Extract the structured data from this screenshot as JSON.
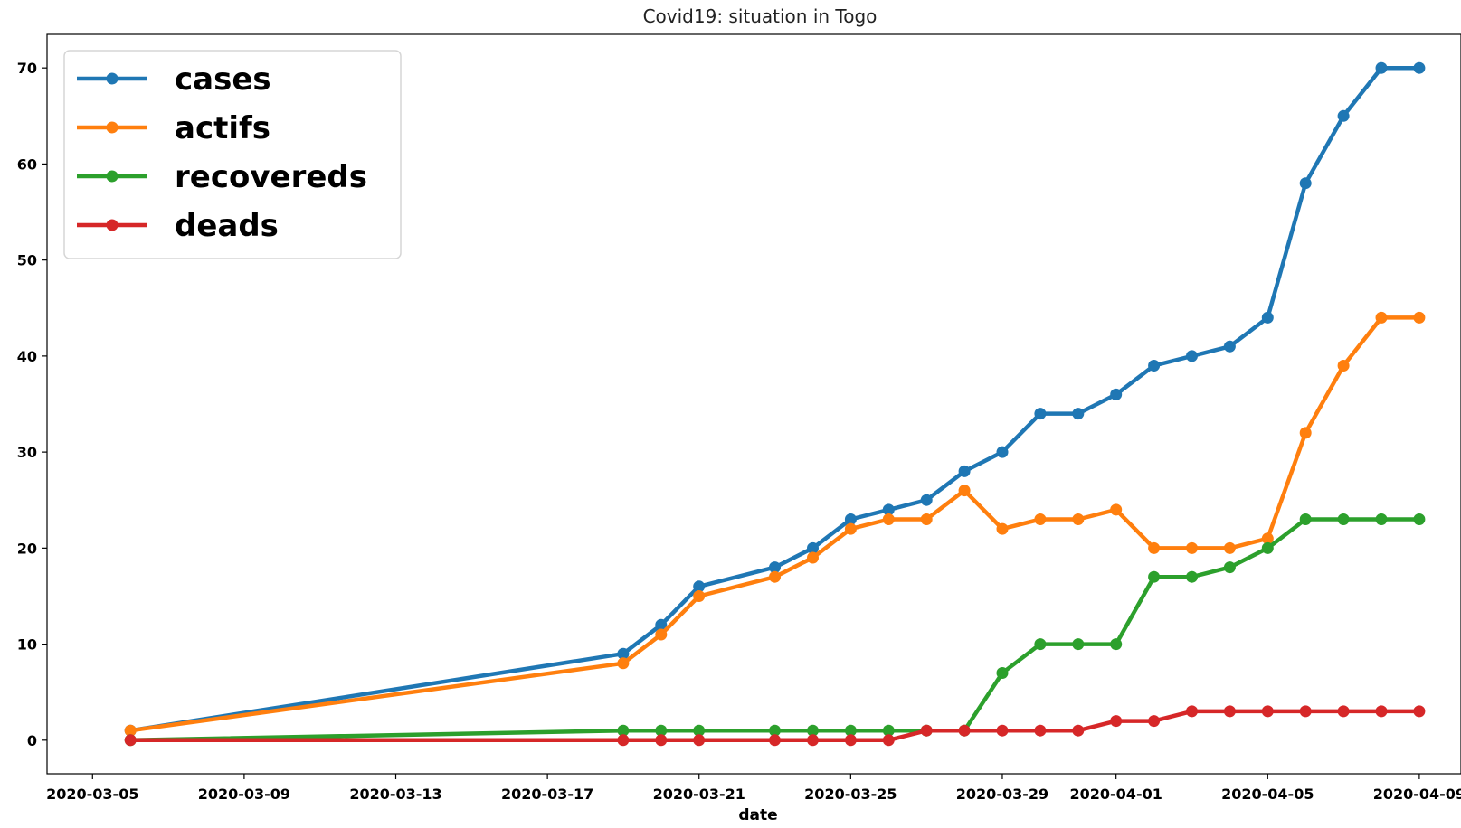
{
  "chart_data": {
    "type": "line",
    "title": "Covid19: situation in Togo",
    "xlabel": "date",
    "ylabel": "",
    "x_ticks": [
      "2020-03-05",
      "2020-03-09",
      "2020-03-13",
      "2020-03-17",
      "2020-03-21",
      "2020-03-25",
      "2020-03-29",
      "2020-04-01",
      "2020-04-05",
      "2020-04-09"
    ],
    "y_ticks": [
      0,
      10,
      20,
      30,
      40,
      50,
      60,
      70
    ],
    "ylim": [
      -3.5,
      73.5
    ],
    "xlim": [
      "2020-03-04",
      "2020-04-10"
    ],
    "grid": false,
    "legend_position": "top-left",
    "dates": [
      "2020-03-06",
      "2020-03-19",
      "2020-03-20",
      "2020-03-21",
      "2020-03-23",
      "2020-03-24",
      "2020-03-25",
      "2020-03-26",
      "2020-03-27",
      "2020-03-28",
      "2020-03-29",
      "2020-03-30",
      "2020-03-31",
      "2020-04-01",
      "2020-04-02",
      "2020-04-03",
      "2020-04-04",
      "2020-04-05",
      "2020-04-06",
      "2020-04-07",
      "2020-04-08",
      "2020-04-09"
    ],
    "series": [
      {
        "name": "cases",
        "color": "#1f77b4",
        "values": [
          1,
          9,
          12,
          16,
          18,
          20,
          23,
          24,
          25,
          28,
          30,
          34,
          34,
          36,
          39,
          40,
          41,
          44,
          58,
          65,
          70,
          70
        ]
      },
      {
        "name": "actifs",
        "color": "#ff7f0e",
        "values": [
          1,
          8,
          11,
          15,
          17,
          19,
          22,
          23,
          23,
          26,
          22,
          23,
          23,
          24,
          20,
          20,
          20,
          21,
          32,
          39,
          44,
          44
        ]
      },
      {
        "name": "recovereds",
        "color": "#2ca02c",
        "values": [
          0,
          1,
          1,
          1,
          1,
          1,
          1,
          1,
          1,
          1,
          7,
          10,
          10,
          10,
          17,
          17,
          18,
          20,
          23,
          23,
          23,
          23
        ]
      },
      {
        "name": "deads",
        "color": "#d62728",
        "values": [
          0,
          0,
          0,
          0,
          0,
          0,
          0,
          0,
          1,
          1,
          1,
          1,
          1,
          2,
          2,
          3,
          3,
          3,
          3,
          3,
          3,
          3
        ]
      }
    ]
  }
}
